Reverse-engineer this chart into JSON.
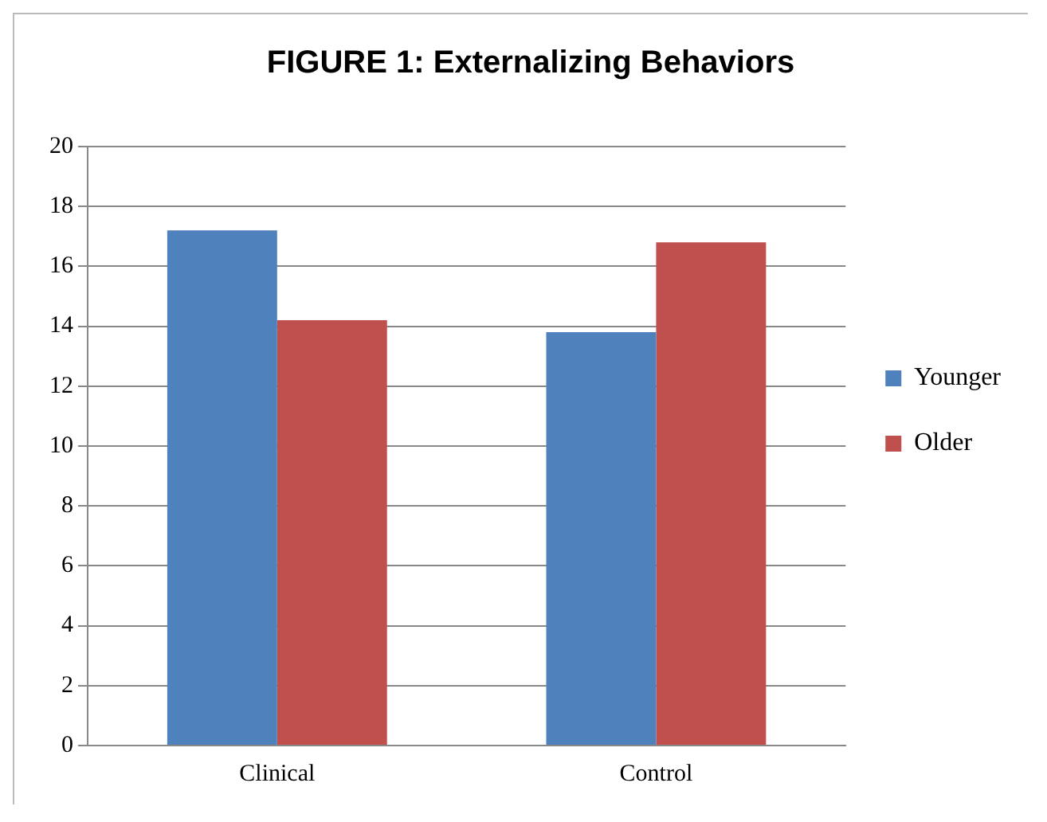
{
  "chart_data": {
    "type": "bar",
    "title": "FIGURE 1: Externalizing Behaviors",
    "categories": [
      "Clinical",
      "Control"
    ],
    "series": [
      {
        "name": "Younger",
        "color": "#4f81bd",
        "values": [
          17.2,
          13.8
        ]
      },
      {
        "name": "Older",
        "color": "#c0504d",
        "values": [
          14.2,
          16.8
        ]
      }
    ],
    "ylim": [
      0,
      20
    ],
    "yticks": [
      0,
      2,
      4,
      6,
      8,
      10,
      12,
      14,
      16,
      18,
      20
    ],
    "grid": "y",
    "legend": "right"
  }
}
